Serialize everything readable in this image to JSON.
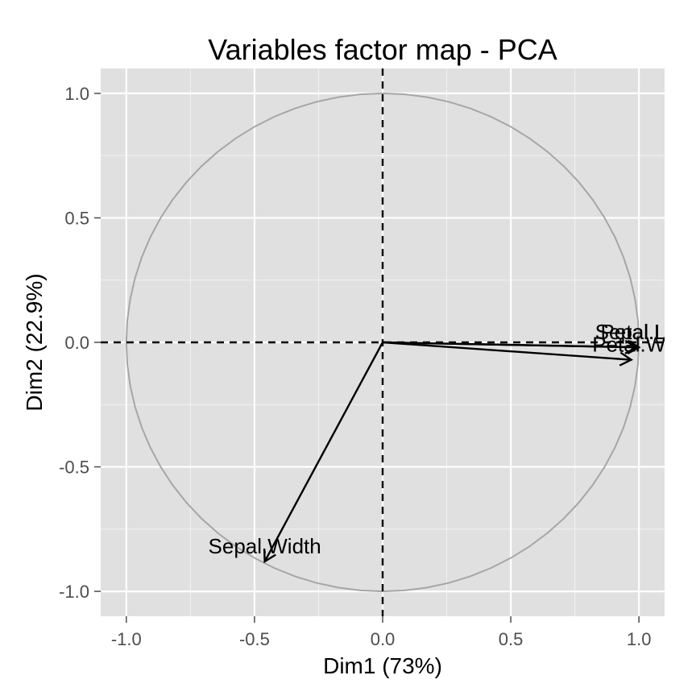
{
  "chart_data": {
    "type": "scatter",
    "title": "Variables factor map - PCA",
    "xlabel": "Dim1 (73%)",
    "ylabel": "Dim2 (22.9%)",
    "xlim": [
      -1.1,
      1.1
    ],
    "ylim": [
      -1.1,
      1.1
    ],
    "xticks": [
      -1.0,
      -0.5,
      0.0,
      0.5,
      1.0
    ],
    "yticks": [
      -1.0,
      -0.5,
      0.0,
      0.5,
      1.0
    ],
    "xtick_labels": [
      "-1.0",
      "-0.5",
      "0.0",
      "0.5",
      "1.0"
    ],
    "ytick_labels": [
      "-1.0",
      "-0.5",
      "0.0",
      "0.5",
      "1.0"
    ],
    "grid": true,
    "panel_color": "#e0e0e0",
    "circle_color": "#a6a6a6",
    "arrow_color": "#000000",
    "variables": [
      {
        "name": "Sepal.Length",
        "label": "Sepal.Le",
        "x": 0.99,
        "y": -0.02
      },
      {
        "name": "Petal.Width",
        "label": "Petal.Wi",
        "x": 0.97,
        "y": -0.07
      },
      {
        "name": "Petal.Length",
        "label": "Petal.Le",
        "x": 1.0,
        "y": -0.02
      },
      {
        "name": "Sepal.Width",
        "label": "Sepal.Width",
        "x": -0.46,
        "y": -0.88
      }
    ]
  }
}
